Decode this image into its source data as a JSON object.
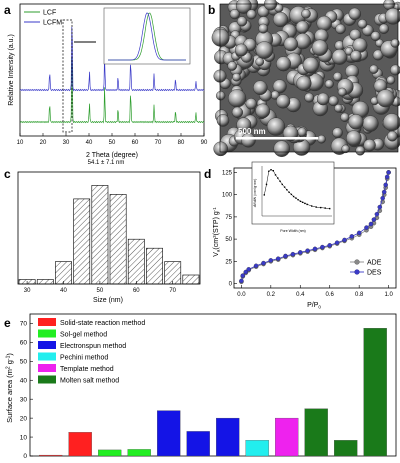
{
  "panels": {
    "a": "a",
    "b": "b",
    "c": "c",
    "d": "d",
    "e": "e"
  },
  "chart_data": [
    {
      "id": "a",
      "type": "line",
      "xlabel": "2 Theta (degree)",
      "ylabel": "Relative Intensity (a.u.)",
      "xlim": [
        10,
        90
      ],
      "x_ticks": [
        "10",
        "20",
        "30",
        "40",
        "50",
        "60",
        "70",
        "80",
        "90"
      ],
      "legend": "top-left",
      "series": [
        {
          "name": "LCF",
          "color": "#2e9e2e",
          "peaks": [
            [
              22.9,
              0.25
            ],
            [
              32.6,
              1.0
            ],
            [
              40.2,
              0.25
            ],
            [
              46.8,
              0.45
            ],
            [
              52.6,
              0.18
            ],
            [
              58.1,
              0.4
            ],
            [
              68.3,
              0.22
            ],
            [
              77.6,
              0.15
            ],
            [
              86.5,
              0.12
            ]
          ]
        },
        {
          "name": "LCFM",
          "color": "#3a3ac8",
          "peaks": [
            [
              22.9,
              0.25
            ],
            [
              32.6,
              1.0
            ],
            [
              40.2,
              0.25
            ],
            [
              46.8,
              0.45
            ],
            [
              52.6,
              0.18
            ],
            [
              58.1,
              0.4
            ],
            [
              68.3,
              0.22
            ],
            [
              77.6,
              0.15
            ],
            [
              86.5,
              0.12
            ]
          ]
        }
      ]
    },
    {
      "id": "b",
      "type": "image",
      "scale_bar_label": "500 nm"
    },
    {
      "id": "c",
      "type": "bar",
      "title": "54.1 ± 7.1 nm",
      "xlabel": "Size (nm)",
      "xlim": [
        27.5,
        77.5
      ],
      "x_ticks": [
        "30",
        "40",
        "50",
        "60",
        "70"
      ],
      "bin_centers": [
        30,
        35,
        40,
        45,
        50,
        55,
        60,
        65,
        70,
        75
      ],
      "values": [
        1,
        1,
        5,
        19,
        22,
        20,
        10,
        8,
        5,
        2
      ]
    },
    {
      "id": "d",
      "type": "line",
      "xlabel": "P/P",
      "xlabel_sub": "0",
      "ylabel": "V",
      "ylabel_sub": "a",
      "ylabel_rest": "(cm",
      "ylabel_sup": "3",
      "ylabel_tail": "(STP) g",
      "ylabel_sup2": "-1",
      "xlim": [
        -0.05,
        1.05
      ],
      "ylim": [
        -5,
        130
      ],
      "x_ticks": [
        "0.0",
        "0.2",
        "0.4",
        "0.6",
        "0.8",
        "1.0"
      ],
      "y_ticks": [
        "0",
        "25",
        "50",
        "75",
        "100",
        "125"
      ],
      "legend": "bottom-right",
      "series": [
        {
          "name": "ADE",
          "color": "#888888",
          "x": [
            0.0,
            0.01,
            0.03,
            0.05,
            0.1,
            0.15,
            0.2,
            0.25,
            0.3,
            0.35,
            0.4,
            0.45,
            0.5,
            0.55,
            0.6,
            0.65,
            0.7,
            0.75,
            0.8,
            0.85,
            0.88,
            0.9,
            0.92,
            0.94,
            0.96,
            0.97,
            0.98,
            0.99,
            1.0
          ],
          "y": [
            2,
            8,
            12,
            15,
            19,
            22,
            25,
            27,
            30,
            32,
            34,
            36,
            38,
            40,
            42,
            45,
            48,
            51,
            55,
            60,
            64,
            68,
            74,
            82,
            92,
            100,
            108,
            118,
            125
          ]
        },
        {
          "name": "DES",
          "color": "#3a3ac8",
          "x": [
            0.0,
            0.01,
            0.03,
            0.05,
            0.1,
            0.15,
            0.2,
            0.25,
            0.3,
            0.35,
            0.4,
            0.45,
            0.5,
            0.55,
            0.6,
            0.65,
            0.7,
            0.75,
            0.8,
            0.85,
            0.88,
            0.9,
            0.92,
            0.94,
            0.96,
            0.97,
            0.98,
            0.99,
            1.0
          ],
          "y": [
            3,
            9,
            13,
            16,
            20,
            23,
            26,
            28,
            31,
            33,
            35,
            37,
            39,
            41,
            43,
            46,
            49,
            53,
            57,
            63,
            67,
            72,
            78,
            86,
            96,
            103,
            111,
            120,
            125
          ]
        }
      ],
      "inset": {
        "xlabel": "Pore Width (nm)",
        "ylabel": "dV/dW (cm³/g·nm)",
        "x": [
          1,
          2,
          3,
          4,
          5,
          6,
          7,
          8,
          9,
          10,
          11,
          12,
          13,
          14,
          15,
          16,
          17,
          18,
          19,
          20,
          22,
          24,
          26,
          28,
          30
        ],
        "y": [
          0.004,
          0.006,
          0.0085,
          0.0088,
          0.0086,
          0.0078,
          0.0072,
          0.0066,
          0.006,
          0.0055,
          0.005,
          0.0045,
          0.0041,
          0.0037,
          0.0034,
          0.0031,
          0.0028,
          0.0026,
          0.0024,
          0.0022,
          0.0019,
          0.0017,
          0.0016,
          0.0015,
          0.0014
        ]
      }
    },
    {
      "id": "e",
      "type": "bar",
      "ylabel": "Surface area (m",
      "ylabel_sup": "2",
      "ylabel_mid": " g",
      "ylabel_sup2": "-1",
      "ylabel_end": ")",
      "ylim": [
        0,
        75
      ],
      "y_ticks": [
        "0",
        "10",
        "20",
        "30",
        "40",
        "50",
        "60",
        "70"
      ],
      "legend": "top-left",
      "categories": [
        {
          "name": "Solid-state reaction method",
          "color": "#ff2020"
        },
        {
          "name": "Sol-gel method",
          "color": "#22ee22"
        },
        {
          "name": "Electronspun method",
          "color": "#1414e6"
        },
        {
          "name": "Pechini method",
          "color": "#22eeee"
        },
        {
          "name": "Template method",
          "color": "#ee22ee"
        },
        {
          "name": "Molten salt method",
          "color": "#1a7a1a"
        }
      ],
      "bars": [
        {
          "cat": 0,
          "value": 0.5
        },
        {
          "cat": 0,
          "value": 12.5
        },
        {
          "cat": 1,
          "value": 3.2
        },
        {
          "cat": 1,
          "value": 3.5
        },
        {
          "cat": 2,
          "value": 24
        },
        {
          "cat": 2,
          "value": 13
        },
        {
          "cat": 2,
          "value": 20
        },
        {
          "cat": 3,
          "value": 8.3
        },
        {
          "cat": 4,
          "value": 20
        },
        {
          "cat": 5,
          "value": 25
        },
        {
          "cat": 5,
          "value": 8.3
        },
        {
          "cat": 5,
          "value": 67.5
        }
      ]
    }
  ]
}
